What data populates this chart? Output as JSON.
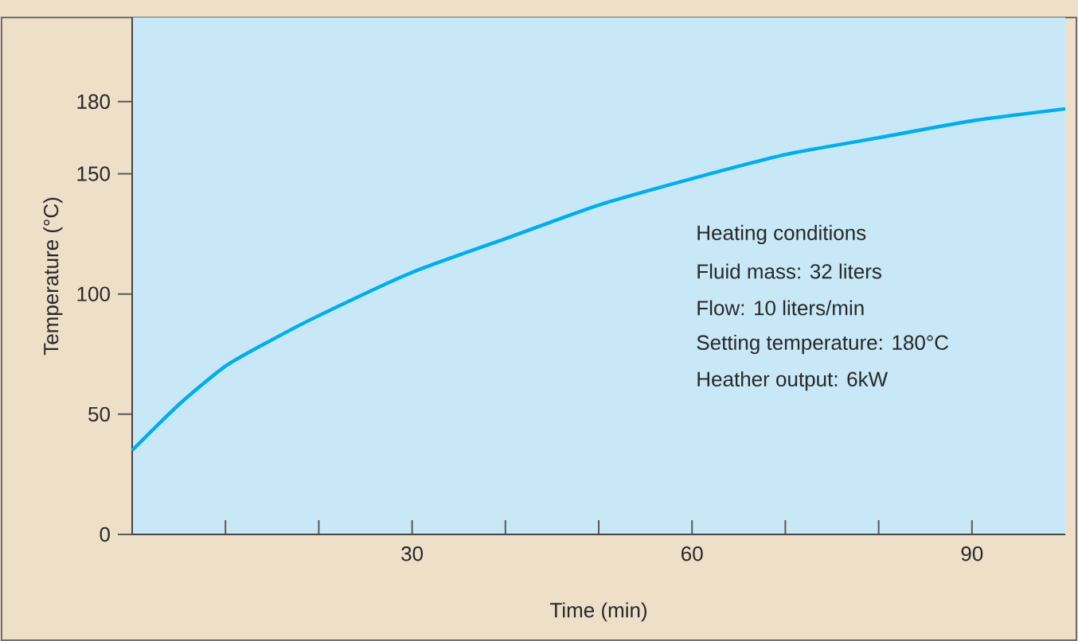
{
  "chart_data": {
    "type": "line",
    "xlabel": "Time (min)",
    "ylabel": "Temperature (°C)",
    "x": [
      0,
      5,
      10,
      15,
      20,
      30,
      40,
      50,
      60,
      70,
      80,
      90,
      100
    ],
    "series": [
      {
        "color": "#00aeef",
        "values": [
          35,
          54,
          70,
          81,
          91,
          109,
          123,
          137,
          148,
          158,
          165,
          172,
          177
        ]
      }
    ],
    "xlim": [
      0,
      100
    ],
    "ylim": [
      0,
      215
    ],
    "xticks": [
      {
        "value": 10,
        "label": null
      },
      {
        "value": 20,
        "label": null
      },
      30,
      {
        "value": 40,
        "label": null
      },
      {
        "value": 50,
        "label": null
      },
      60,
      {
        "value": 70,
        "label": null
      },
      {
        "value": 80,
        "label": null
      },
      90
    ],
    "yticks": [
      0,
      50,
      100,
      150,
      180
    ],
    "marker": "none",
    "line_style": "solid",
    "annotations": [
      "Heating conditions",
      "Fluid mass: 32 liters",
      "Flow: 10 liters/min",
      "Setting temperature: 180°C",
      "Heather output: 6kW"
    ]
  }
}
